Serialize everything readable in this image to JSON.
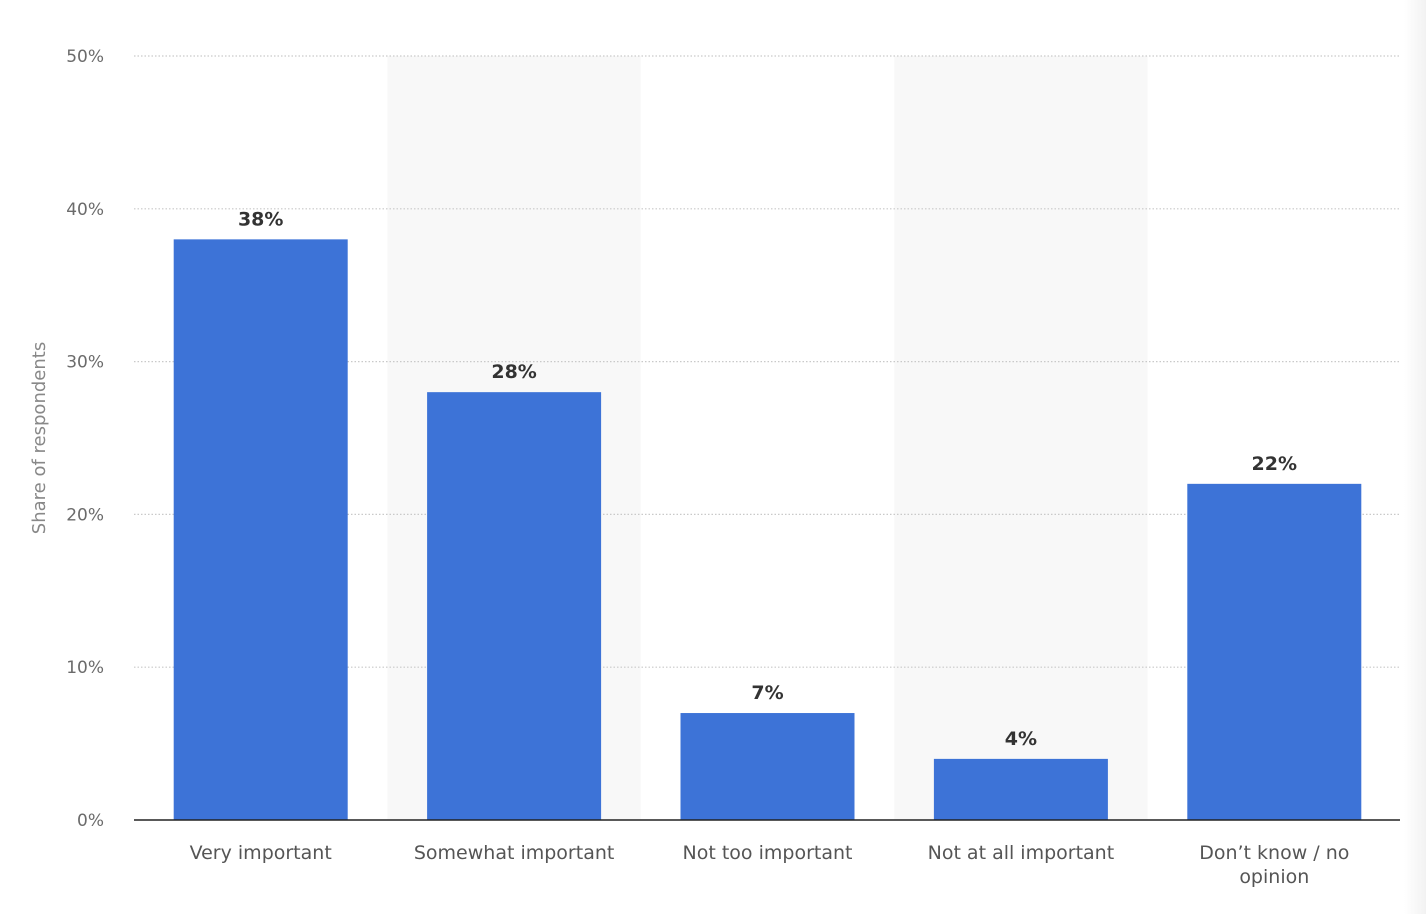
{
  "chart_data": {
    "type": "bar",
    "categories": [
      [
        "Very important"
      ],
      [
        "Somewhat important"
      ],
      [
        "Not too important"
      ],
      [
        "Not at all important"
      ],
      [
        "Don’t know / no",
        "opinion"
      ]
    ],
    "values": [
      38,
      28,
      7,
      4,
      22
    ],
    "value_labels": [
      "38%",
      "28%",
      "7%",
      "4%",
      "22%"
    ],
    "ylabel": "Share of respondents",
    "ylim": [
      0,
      50
    ],
    "yticks": [
      0,
      10,
      20,
      30,
      40,
      50
    ],
    "ytick_labels": [
      "0%",
      "10%",
      "20%",
      "30%",
      "40%",
      "50%"
    ],
    "grid": true,
    "alternating_band_background": true,
    "colors": {
      "bar": "#3d73d7",
      "band": "#f8f8f8",
      "gridline": "#c9c9c9",
      "axis_line": "#222222",
      "tick_label": "#6b6b6b",
      "category_label": "#555555",
      "data_label": "#333333",
      "ylabel": "#888888"
    }
  }
}
